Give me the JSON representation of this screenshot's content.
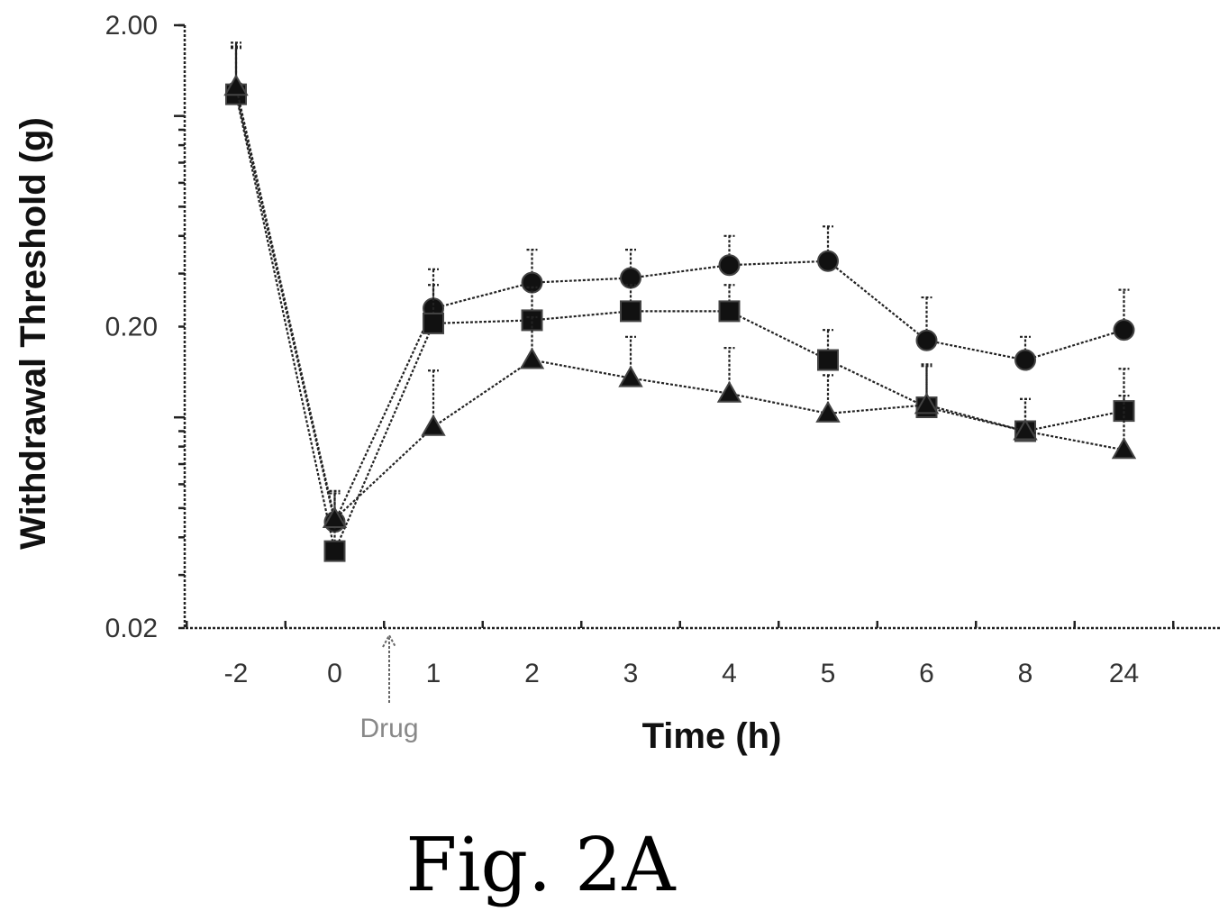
{
  "chart_data": {
    "type": "line",
    "title": "",
    "xlabel": "Time (h)",
    "ylabel": "Withdrawal Threshold (g)",
    "y_scale": "log",
    "ylim": [
      0.02,
      2.0
    ],
    "y_ticks": [
      "2.00",
      "0.20",
      "0.02"
    ],
    "categories": [
      "-2",
      "0",
      "1",
      "2",
      "3",
      "4",
      "5",
      "6",
      "8",
      "24"
    ],
    "series": [
      {
        "marker": "circle",
        "values": [
          1.2,
          0.045,
          0.23,
          0.28,
          0.29,
          0.32,
          0.33,
          0.18,
          0.155,
          0.195
        ],
        "errors": [
          0.5,
          0.012,
          0.08,
          0.08,
          0.07,
          0.08,
          0.1,
          0.07,
          0.03,
          0.07
        ]
      },
      {
        "marker": "square",
        "values": [
          1.18,
          0.036,
          0.205,
          0.21,
          0.225,
          0.225,
          0.155,
          0.108,
          0.09,
          0.105
        ],
        "errors": [
          0.5,
          0.012,
          0.07,
          0.06,
          0.05,
          0.05,
          0.04,
          0.04,
          0.025,
          0.04
        ]
      },
      {
        "marker": "triangle",
        "values": [
          1.25,
          0.046,
          0.093,
          0.155,
          0.135,
          0.12,
          0.103,
          0.11,
          0.09,
          0.078
        ],
        "errors": [
          0.5,
          0.01,
          0.05,
          0.06,
          0.05,
          0.05,
          0.035,
          0.04,
          0.025,
          0.04
        ]
      }
    ],
    "annotation": {
      "text": "Drug",
      "at_between": [
        "0",
        "1"
      ]
    }
  },
  "caption": "Fig. 2A"
}
